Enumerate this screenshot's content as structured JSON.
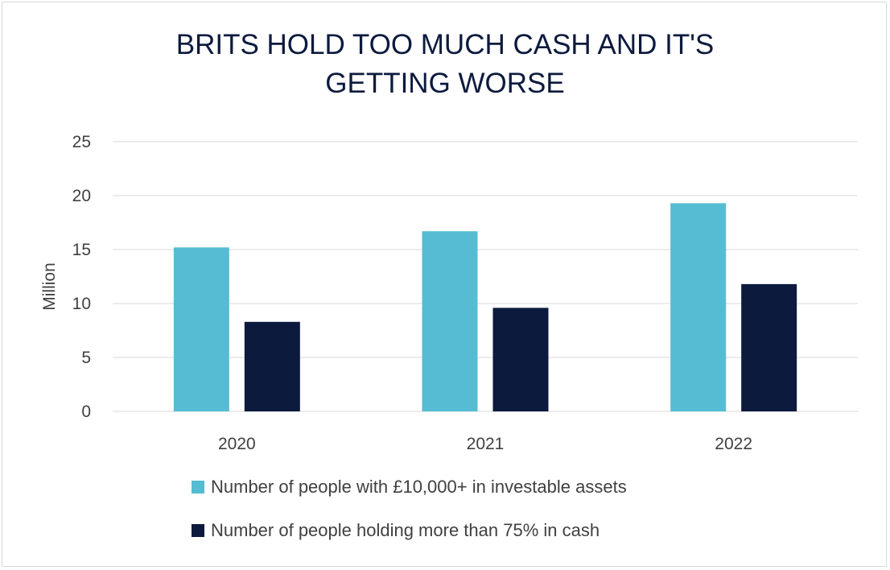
{
  "chart_data": {
    "type": "bar",
    "title_lines": [
      "BRITS HOLD TOO MUCH CASH AND IT'S",
      "GETTING WORSE"
    ],
    "xlabel": "",
    "ylabel": "Million",
    "ylim": [
      0,
      25
    ],
    "yticks": [
      "0",
      "5",
      "10",
      "15",
      "20",
      "25"
    ],
    "ytick_values": [
      0,
      5,
      10,
      15,
      20,
      25
    ],
    "categories": [
      "2020",
      "2021",
      "2022"
    ],
    "grid": true,
    "legend_position": "bottom",
    "series": [
      {
        "name": "Number of people with £10,000+ in investable assets",
        "color": "#56bcd3",
        "values": [
          15.2,
          16.7,
          19.3
        ]
      },
      {
        "name": "Number of people holding more than 75% in cash",
        "color": "#0c1a3d",
        "values": [
          8.3,
          9.6,
          11.8
        ]
      }
    ]
  }
}
